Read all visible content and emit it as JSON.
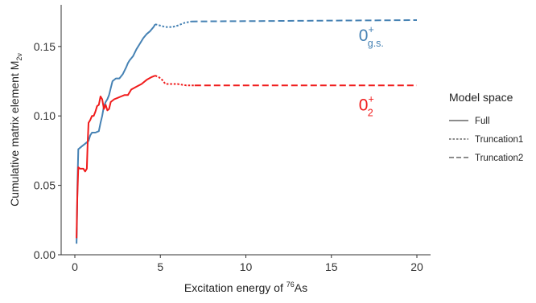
{
  "chart_data": {
    "type": "line",
    "title": "",
    "xlabel_prefix": "Excitation energy of ",
    "xlabel_sup": "76",
    "xlabel_suffix": "As",
    "ylabel": "Cumulative matrix element M",
    "ylabel_sub": "2ν",
    "xlim": [
      -0.8,
      20.8
    ],
    "ylim": [
      0,
      0.18
    ],
    "x_ticks": [
      0,
      5,
      10,
      15,
      20
    ],
    "x_tick_labels": [
      "0",
      "5",
      "10",
      "15",
      "20"
    ],
    "y_ticks": [
      0.0,
      0.05,
      0.1,
      0.15
    ],
    "y_tick_labels": [
      "0.00",
      "0.05",
      "0.10",
      "0.15"
    ],
    "grid": false,
    "legend": {
      "title": "Model space",
      "placement": "right",
      "entries": [
        {
          "label": "Full",
          "linestyle": "solid"
        },
        {
          "label": "Truncation1",
          "linestyle": "dotted"
        },
        {
          "label": "Truncation2",
          "linestyle": "dashed"
        }
      ]
    },
    "annotations": [
      {
        "main": "0",
        "sup": "+",
        "sub": "g.s.",
        "color": "#4682b4",
        "x": 16.6,
        "y": 0.154
      },
      {
        "main": "0",
        "sup": "+",
        "sub": "2",
        "color": "#f01b1b",
        "x": 16.6,
        "y": 0.104
      }
    ],
    "series": [
      {
        "color": "#4682b4",
        "segments": [
          {
            "style": "solid",
            "points": [
              [
                0.1,
                0.008
              ],
              [
                0.12,
                0.02
              ],
              [
                0.15,
                0.05
              ],
              [
                0.2,
                0.076
              ],
              [
                0.4,
                0.078
              ],
              [
                0.6,
                0.08
              ],
              [
                0.8,
                0.082
              ],
              [
                0.9,
                0.086
              ],
              [
                1.0,
                0.088
              ],
              [
                1.2,
                0.088
              ],
              [
                1.4,
                0.089
              ],
              [
                1.5,
                0.095
              ],
              [
                1.6,
                0.1
              ],
              [
                1.7,
                0.107
              ],
              [
                1.8,
                0.11
              ],
              [
                1.9,
                0.112
              ],
              [
                2.0,
                0.115
              ],
              [
                2.1,
                0.12
              ],
              [
                2.2,
                0.125
              ],
              [
                2.4,
                0.127
              ],
              [
                2.6,
                0.127
              ],
              [
                2.8,
                0.13
              ],
              [
                3.0,
                0.135
              ],
              [
                3.1,
                0.138
              ],
              [
                3.2,
                0.14
              ],
              [
                3.4,
                0.143
              ],
              [
                3.6,
                0.148
              ],
              [
                3.8,
                0.152
              ],
              [
                4.0,
                0.156
              ],
              [
                4.2,
                0.159
              ],
              [
                4.4,
                0.161
              ],
              [
                4.6,
                0.164
              ],
              [
                4.7,
                0.166
              ]
            ]
          },
          {
            "style": "dotted",
            "points": [
              [
                4.7,
                0.166
              ],
              [
                5.0,
                0.165
              ],
              [
                5.3,
                0.164
              ],
              [
                5.7,
                0.164
              ],
              [
                6.0,
                0.165
              ],
              [
                6.4,
                0.167
              ],
              [
                6.8,
                0.168
              ]
            ]
          },
          {
            "style": "dashed",
            "points": [
              [
                6.8,
                0.168
              ],
              [
                20.0,
                0.169
              ]
            ]
          }
        ]
      },
      {
        "color": "#f01b1b",
        "segments": [
          {
            "style": "solid",
            "points": [
              [
                0.1,
                0.012
              ],
              [
                0.14,
                0.04
              ],
              [
                0.2,
                0.063
              ],
              [
                0.3,
                0.062
              ],
              [
                0.5,
                0.062
              ],
              [
                0.6,
                0.06
              ],
              [
                0.7,
                0.062
              ],
              [
                0.75,
                0.08
              ],
              [
                0.8,
                0.095
              ],
              [
                0.9,
                0.097
              ],
              [
                1.0,
                0.1
              ],
              [
                1.1,
                0.1
              ],
              [
                1.2,
                0.103
              ],
              [
                1.3,
                0.107
              ],
              [
                1.4,
                0.108
              ],
              [
                1.5,
                0.114
              ],
              [
                1.6,
                0.112
              ],
              [
                1.7,
                0.105
              ],
              [
                1.8,
                0.108
              ],
              [
                1.9,
                0.104
              ],
              [
                2.0,
                0.105
              ],
              [
                2.1,
                0.11
              ],
              [
                2.3,
                0.112
              ],
              [
                2.5,
                0.113
              ],
              [
                2.7,
                0.114
              ],
              [
                2.9,
                0.115
              ],
              [
                3.1,
                0.115
              ],
              [
                3.3,
                0.119
              ],
              [
                3.6,
                0.121
              ],
              [
                3.9,
                0.123
              ],
              [
                4.2,
                0.126
              ],
              [
                4.5,
                0.128
              ],
              [
                4.7,
                0.129
              ]
            ]
          },
          {
            "style": "dotted",
            "points": [
              [
                4.7,
                0.129
              ],
              [
                4.9,
                0.128
              ],
              [
                5.1,
                0.126
              ],
              [
                5.3,
                0.123
              ],
              [
                5.6,
                0.123
              ],
              [
                6.0,
                0.123
              ],
              [
                6.5,
                0.122
              ],
              [
                7.0,
                0.122
              ]
            ]
          },
          {
            "style": "dashed",
            "points": [
              [
                7.0,
                0.122
              ],
              [
                20.0,
                0.122
              ]
            ]
          }
        ]
      }
    ]
  }
}
